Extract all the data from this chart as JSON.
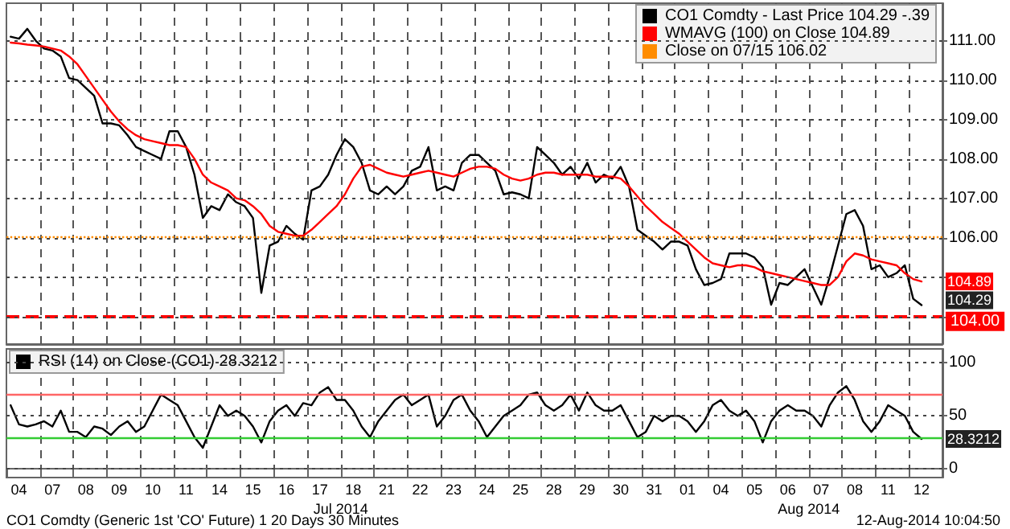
{
  "chart_data": [
    {
      "type": "line",
      "categories": [
        null,
        "04",
        null,
        null,
        null,
        "07",
        null,
        null,
        null,
        "08",
        null,
        null,
        null,
        "09",
        null,
        null,
        null,
        "10",
        null,
        null,
        null,
        "11",
        null,
        null,
        null,
        "14",
        null,
        null,
        null,
        "15",
        null,
        null,
        null,
        "16",
        null,
        null,
        null,
        "17",
        null,
        null,
        null,
        "18",
        null,
        null,
        null,
        "21",
        null,
        null,
        null,
        "22",
        null,
        null,
        null,
        "23",
        null,
        null,
        null,
        "24",
        null,
        null,
        null,
        "25",
        null,
        null,
        null,
        "28",
        null,
        null,
        null,
        "29",
        null,
        null,
        null,
        "30",
        null,
        null,
        null,
        "31",
        null,
        null,
        null,
        "01",
        null,
        null,
        null,
        "04",
        null,
        null,
        null,
        "05",
        null,
        null,
        null,
        "06",
        null,
        null,
        null,
        "07",
        null,
        null,
        null,
        "08",
        null,
        null,
        null,
        "11",
        null,
        null,
        null,
        "12",
        null,
        null
      ],
      "series": [
        {
          "name": "CO1 Comdty - Last Price 104.29 -.39",
          "color": "#000000",
          "values": [
            111.1,
            111.05,
            111.3,
            111.0,
            110.8,
            110.75,
            110.6,
            110.05,
            110.0,
            109.8,
            109.6,
            108.9,
            108.9,
            108.85,
            108.6,
            108.3,
            108.2,
            108.1,
            108.0,
            108.7,
            108.7,
            108.3,
            107.6,
            106.5,
            106.8,
            106.7,
            107.1,
            106.9,
            106.8,
            106.5,
            104.6,
            105.8,
            105.9,
            106.3,
            106.1,
            105.95,
            107.2,
            107.3,
            107.6,
            108.1,
            108.5,
            108.3,
            107.9,
            107.2,
            107.1,
            107.3,
            107.1,
            107.3,
            107.7,
            107.8,
            108.3,
            107.2,
            107.3,
            107.2,
            107.9,
            108.1,
            108.1,
            107.9,
            107.7,
            107.1,
            107.15,
            107.1,
            107.0,
            108.3,
            108.1,
            107.9,
            107.6,
            107.8,
            107.5,
            107.9,
            107.4,
            107.6,
            107.5,
            107.8,
            107.3,
            106.2,
            106.05,
            105.9,
            105.7,
            105.9,
            105.9,
            105.8,
            105.2,
            104.8,
            104.85,
            104.95,
            105.6,
            105.6,
            105.6,
            105.5,
            105.25,
            104.3,
            104.85,
            104.8,
            105.0,
            105.2,
            104.75,
            104.3,
            105.0,
            105.8,
            106.6,
            106.7,
            106.3,
            105.2,
            105.3,
            105.0,
            105.1,
            105.3,
            104.45,
            104.29,
            null,
            null
          ],
          "value_labels": [
            null,
            null,
            null,
            null,
            null,
            null,
            null,
            null,
            null,
            null,
            null,
            null,
            null,
            null,
            null,
            null,
            null,
            null,
            null,
            null,
            null,
            null,
            null,
            null,
            null,
            null,
            null,
            null,
            null,
            null,
            null,
            null,
            null,
            null,
            null,
            null,
            null,
            null,
            null,
            null,
            null,
            null,
            null,
            null,
            null,
            null,
            null,
            null,
            null,
            null,
            null,
            null,
            null,
            null,
            null,
            null,
            null,
            null,
            null,
            null,
            null,
            null,
            null,
            null,
            null,
            null,
            null,
            null,
            null,
            null,
            null,
            null,
            null,
            null,
            null,
            null,
            null,
            null,
            null,
            null,
            null,
            null,
            null,
            null,
            null,
            null,
            null,
            null,
            null,
            null,
            null,
            null,
            null,
            null,
            null,
            null,
            null,
            null,
            null,
            null,
            null,
            null,
            null,
            null,
            null,
            null,
            null,
            null,
            null,
            "104.29",
            null,
            null
          ]
        },
        {
          "name": "WMAVG (100) on Close 104.89",
          "color": "#ff0000",
          "values": [
            110.95,
            110.93,
            110.9,
            110.88,
            110.85,
            110.8,
            110.75,
            110.6,
            110.4,
            110.1,
            109.8,
            109.5,
            109.2,
            108.95,
            108.75,
            108.6,
            108.5,
            108.45,
            108.4,
            108.35,
            108.35,
            108.3,
            108.0,
            107.6,
            107.4,
            107.3,
            107.2,
            107.0,
            106.95,
            106.8,
            106.6,
            106.3,
            106.15,
            106.1,
            106.05,
            106.05,
            106.2,
            106.4,
            106.6,
            106.8,
            107.1,
            107.5,
            107.8,
            107.85,
            107.75,
            107.65,
            107.6,
            107.55,
            107.6,
            107.65,
            107.7,
            107.65,
            107.6,
            107.55,
            107.65,
            107.75,
            107.8,
            107.8,
            107.75,
            107.6,
            107.5,
            107.45,
            107.5,
            107.6,
            107.65,
            107.65,
            107.6,
            107.6,
            107.6,
            107.6,
            107.55,
            107.55,
            107.55,
            107.5,
            107.3,
            107.05,
            106.8,
            106.6,
            106.4,
            106.25,
            106.1,
            105.9,
            105.7,
            105.5,
            105.35,
            105.3,
            105.25,
            105.3,
            105.3,
            105.25,
            105.15,
            105.1,
            105.05,
            105.0,
            104.95,
            104.9,
            104.85,
            104.8,
            104.8,
            105.0,
            105.4,
            105.6,
            105.55,
            105.45,
            105.4,
            105.35,
            105.3,
            105.1,
            104.95,
            104.89,
            null,
            null
          ],
          "value_labels": [
            null,
            null,
            null,
            null,
            null,
            null,
            null,
            null,
            null,
            null,
            null,
            null,
            null,
            null,
            null,
            null,
            null,
            null,
            null,
            null,
            null,
            null,
            null,
            null,
            null,
            null,
            null,
            null,
            null,
            null,
            null,
            null,
            null,
            null,
            null,
            null,
            null,
            null,
            null,
            null,
            null,
            null,
            null,
            null,
            null,
            null,
            null,
            null,
            null,
            null,
            null,
            null,
            null,
            null,
            null,
            null,
            null,
            null,
            null,
            null,
            null,
            null,
            null,
            null,
            null,
            null,
            null,
            null,
            null,
            null,
            null,
            null,
            null,
            null,
            null,
            null,
            null,
            null,
            null,
            null,
            null,
            null,
            null,
            null,
            null,
            null,
            null,
            null,
            null,
            null,
            null,
            null,
            null,
            null,
            null,
            null,
            null,
            null,
            null,
            null,
            null,
            null,
            null,
            null,
            null,
            null,
            null,
            null,
            null,
            "104.89",
            null,
            null
          ]
        }
      ],
      "ylim": [
        103.3,
        111.95
      ],
      "yticks": [
        {
          "value": 104,
          "label": null
        },
        {
          "value": 105,
          "label": null
        },
        {
          "value": 106,
          "label": "106.00"
        },
        {
          "value": 107,
          "label": "107.00"
        },
        {
          "value": 108,
          "label": "108.00"
        },
        {
          "value": 109,
          "label": "109.00"
        },
        {
          "value": 110,
          "label": "110.00"
        },
        {
          "value": 111,
          "label": "111.00"
        }
      ],
      "ref_lines": [
        {
          "axis": "y",
          "value": 106.02,
          "label": "Close on 07/15 106.02",
          "color": "#ff8c00",
          "line_style": "dotted"
        },
        {
          "axis": "y",
          "value": 104,
          "label": "104.00",
          "color": "#ff0000",
          "line_style": "dashed"
        }
      ],
      "grid": true,
      "legend": "top right",
      "tick_labels": "y"
    },
    {
      "type": "line",
      "categories": [
        null,
        "04",
        null,
        null,
        null,
        "07",
        null,
        null,
        null,
        "08",
        null,
        null,
        null,
        "09",
        null,
        null,
        null,
        "10",
        null,
        null,
        null,
        "11",
        null,
        null,
        null,
        "14",
        null,
        null,
        null,
        "15",
        null,
        null,
        null,
        "16",
        null,
        null,
        null,
        "17",
        null,
        null,
        null,
        "18",
        null,
        null,
        null,
        "21",
        null,
        null,
        null,
        "22",
        null,
        null,
        null,
        "23",
        null,
        null,
        null,
        "24",
        null,
        null,
        null,
        "25",
        null,
        null,
        null,
        "28",
        null,
        null,
        null,
        "29",
        null,
        null,
        null,
        "30",
        null,
        null,
        null,
        "31",
        null,
        null,
        null,
        "01",
        null,
        null,
        null,
        "04",
        null,
        null,
        null,
        "05",
        null,
        null,
        null,
        "06",
        null,
        null,
        null,
        "07",
        null,
        null,
        null,
        "08",
        null,
        null,
        null,
        "11",
        null,
        null,
        null,
        "12",
        null,
        null
      ],
      "series": [
        {
          "name": "RSI (14) on Close (CO1) 28.3212",
          "color": "#000000",
          "values": [
            60,
            42,
            40,
            42,
            45,
            40,
            55,
            35,
            35,
            30,
            40,
            38,
            32,
            40,
            45,
            35,
            40,
            55,
            70,
            65,
            60,
            45,
            30,
            20,
            40,
            60,
            50,
            55,
            50,
            40,
            25,
            45,
            55,
            60,
            50,
            62,
            60,
            72,
            77,
            65,
            65,
            55,
            40,
            30,
            45,
            55,
            65,
            70,
            60,
            65,
            70,
            40,
            50,
            65,
            70,
            55,
            45,
            30,
            40,
            50,
            55,
            60,
            70,
            72,
            60,
            55,
            60,
            70,
            55,
            72,
            60,
            55,
            55,
            60,
            45,
            30,
            35,
            50,
            45,
            50,
            50,
            45,
            35,
            45,
            60,
            65,
            55,
            50,
            55,
            45,
            25,
            45,
            55,
            60,
            55,
            55,
            50,
            40,
            60,
            72,
            78,
            65,
            45,
            35,
            45,
            60,
            55,
            50,
            35,
            28.3212,
            null,
            null
          ],
          "value_labels": [
            null,
            null,
            null,
            null,
            null,
            null,
            null,
            null,
            null,
            null,
            null,
            null,
            null,
            null,
            null,
            null,
            null,
            null,
            null,
            null,
            null,
            null,
            null,
            null,
            null,
            null,
            null,
            null,
            null,
            null,
            null,
            null,
            null,
            null,
            null,
            null,
            null,
            null,
            null,
            null,
            null,
            null,
            null,
            null,
            null,
            null,
            null,
            null,
            null,
            null,
            null,
            null,
            null,
            null,
            null,
            null,
            null,
            null,
            null,
            null,
            null,
            null,
            null,
            null,
            null,
            null,
            null,
            null,
            null,
            null,
            null,
            null,
            null,
            null,
            null,
            null,
            null,
            null,
            null,
            null,
            null,
            null,
            null,
            null,
            null,
            null,
            null,
            null,
            null,
            null,
            null,
            null,
            null,
            null,
            null,
            null,
            null,
            null,
            null,
            null,
            null,
            null,
            null,
            null,
            null,
            null,
            null,
            null,
            null,
            "28.3212",
            null,
            null
          ]
        }
      ],
      "ylim": [
        -8,
        113
      ],
      "yticks": [
        0,
        50,
        100
      ],
      "ref_lines": [
        {
          "axis": "y",
          "value": 70,
          "color": "#ff6666",
          "line_style": "solid"
        },
        {
          "axis": "y",
          "value": 30,
          "color": "#33cc33",
          "line_style": "solid"
        }
      ],
      "annotations": [
        "Jul 2014",
        "Aug 2014",
        "CO1 Comdty (Generic 1st 'CO' Future) 1 20 Days 30 Minutes",
        "12-Aug-2014 10:04:50"
      ],
      "grid": true,
      "legend": "top left"
    }
  ]
}
